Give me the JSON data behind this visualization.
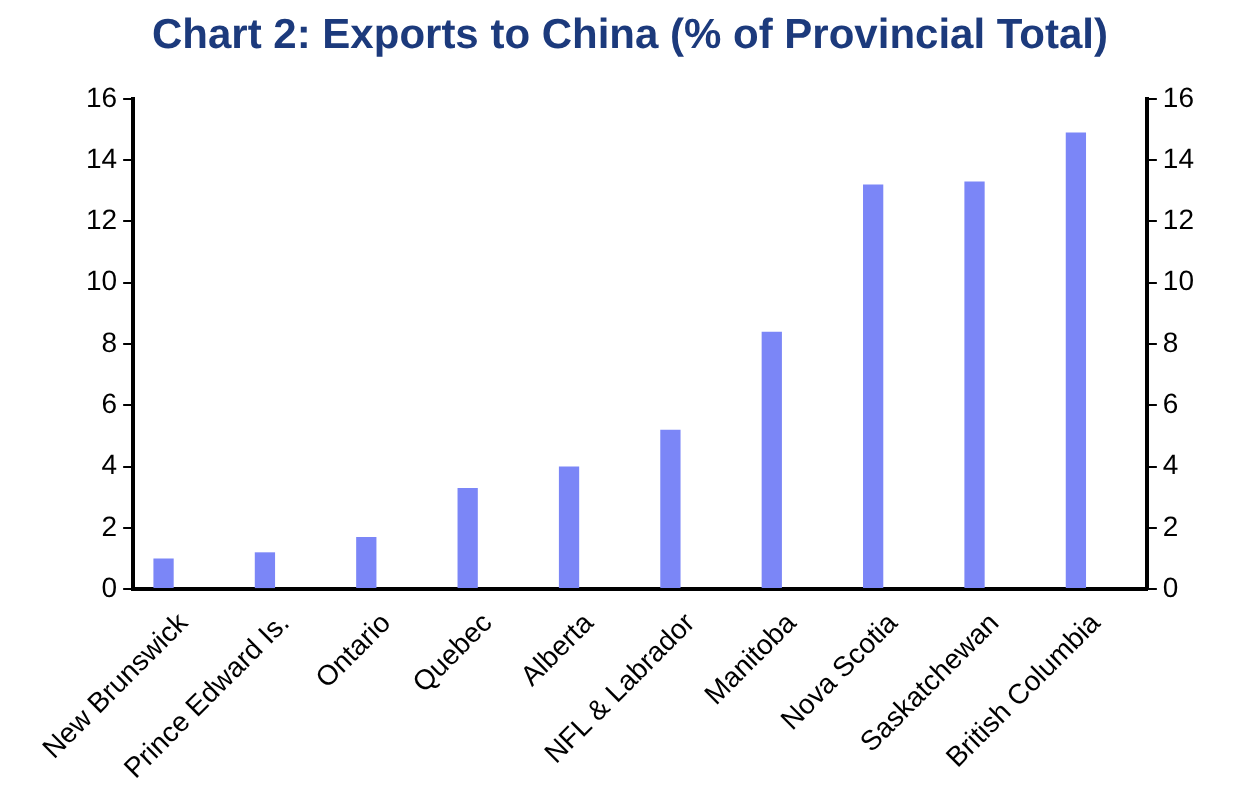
{
  "chart_data": {
    "type": "bar",
    "title": "Chart 2: Exports to China (% of Provincial Total)",
    "categories": [
      "New Brunswick",
      "Prince Edward Is.",
      "Ontario",
      "Quebec",
      "Alberta",
      "NFL & Labrador",
      "Manitoba",
      "Nova Scotia",
      "Saskatchewan",
      "British Columbia"
    ],
    "values": [
      1.0,
      1.2,
      1.7,
      3.3,
      4.0,
      5.2,
      8.4,
      13.2,
      13.3,
      14.9
    ],
    "color": "#7b86f7",
    "ylim": [
      0,
      16
    ],
    "yticks": [
      0,
      2,
      4,
      6,
      8,
      10,
      12,
      14,
      16
    ],
    "y2lim": [
      0,
      16
    ],
    "y2ticks": [
      0,
      2,
      4,
      6,
      8,
      10,
      12,
      14,
      16
    ],
    "grid": false,
    "legend": false
  }
}
